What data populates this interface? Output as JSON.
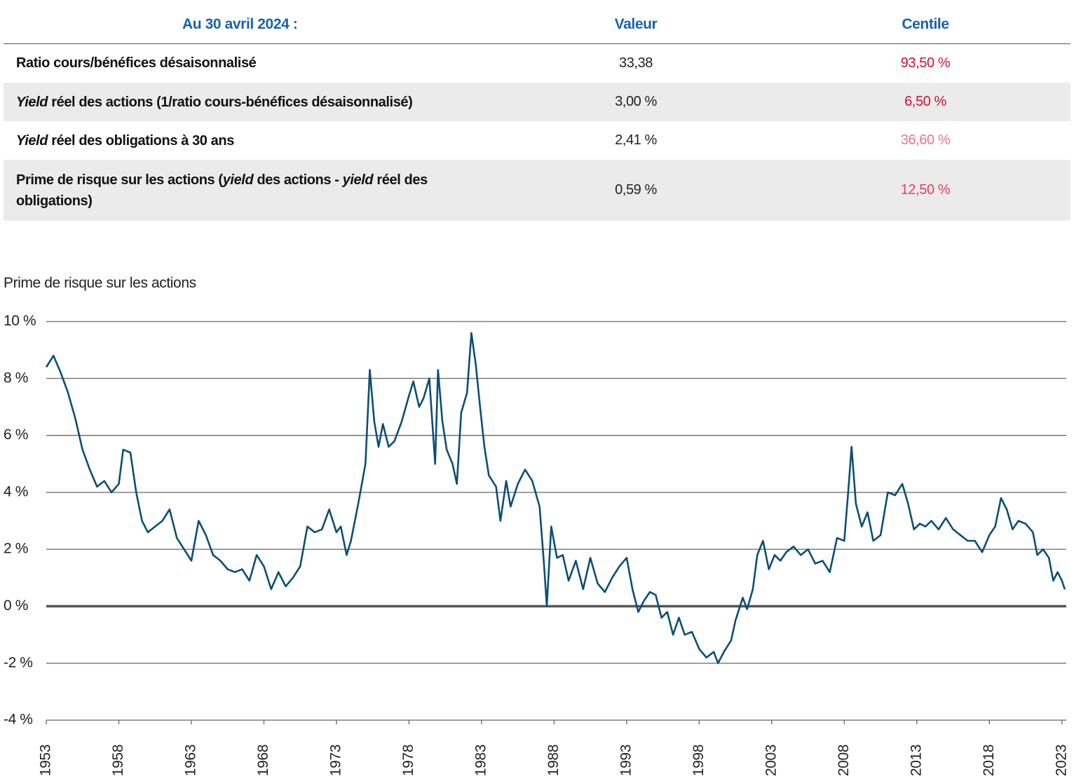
{
  "table": {
    "header": [
      "Au 30 avril 2024 :",
      "Valeur",
      "Centile"
    ],
    "rows": [
      {
        "label": [
          {
            "text": "Ratio cours/bénéfices désaisonnalisé"
          }
        ],
        "value": "33,38",
        "centile": "93,50 %",
        "centile_color": "#d0103a"
      },
      {
        "label": [
          {
            "text": "Yield",
            "italic": true
          },
          {
            "text": " réel des actions (1/ratio cours-bénéfices désaisonnalisé)"
          }
        ],
        "value": "3,00 %",
        "centile": "6,50 %",
        "centile_color": "#d0103a"
      },
      {
        "label": [
          {
            "text": "Yield",
            "italic": true
          },
          {
            "text": " réel des obligations à 30 ans"
          }
        ],
        "value": "2,41 %",
        "centile": "36,60 %",
        "centile_color": "#e8748a"
      },
      {
        "label": [
          {
            "text": "Prime de risque sur les actions ("
          },
          {
            "text": "yield",
            "italic": true
          },
          {
            "text": " des actions - "
          },
          {
            "text": "yield",
            "italic": true
          },
          {
            "text": " réel des obligations)"
          }
        ],
        "value": "0,59 %",
        "centile": "12,50 %",
        "centile_color": "#e2405f"
      }
    ]
  },
  "chart_data": {
    "type": "line",
    "title": "Prime de risque sur les actions",
    "x": [
      1953.0,
      1953.5,
      1954,
      1954.5,
      1955,
      1955.5,
      1956,
      1956.5,
      1957,
      1957.5,
      1958,
      1958.3,
      1958.8,
      1959.2,
      1959.6,
      1960,
      1960.5,
      1961,
      1961.5,
      1962,
      1962.5,
      1963,
      1963.5,
      1964,
      1964.5,
      1965,
      1965.5,
      1966,
      1966.5,
      1967,
      1967.5,
      1968,
      1968.5,
      1969,
      1969.5,
      1970,
      1970.5,
      1971,
      1971.5,
      1972,
      1972.5,
      1973,
      1973.3,
      1973.7,
      1974,
      1974.5,
      1975,
      1975.3,
      1975.6,
      1975.9,
      1976.2,
      1976.6,
      1977,
      1977.5,
      1978,
      1978.3,
      1978.7,
      1979,
      1979.4,
      1979.8,
      1980,
      1980.3,
      1980.6,
      1981,
      1981.3,
      1981.6,
      1982,
      1982.3,
      1982.6,
      1982.9,
      1983.2,
      1983.5,
      1984,
      1984.3,
      1984.7,
      1985,
      1985.5,
      1986,
      1986.5,
      1987,
      1987.3,
      1987.5,
      1987.8,
      1988.2,
      1988.6,
      1989,
      1989.5,
      1990,
      1990.5,
      1991,
      1991.5,
      1992,
      1992.5,
      1993,
      1993.4,
      1993.8,
      1994.2,
      1994.6,
      1995,
      1995.4,
      1995.8,
      1996.2,
      1996.6,
      1997,
      1997.5,
      1998,
      1998.5,
      1999,
      1999.3,
      1999.7,
      2000.2,
      2000.5,
      2001,
      2001.3,
      2001.7,
      2002,
      2002.4,
      2002.8,
      2003.2,
      2003.6,
      2004,
      2004.5,
      2005,
      2005.5,
      2006,
      2006.5,
      2007,
      2007.5,
      2008,
      2008.3,
      2008.5,
      2008.8,
      2009.2,
      2009.6,
      2010,
      2010.5,
      2011,
      2011.5,
      2012,
      2012.4,
      2012.8,
      2013.2,
      2013.6,
      2014,
      2014.5,
      2015,
      2015.5,
      2016,
      2016.5,
      2017,
      2017.5,
      2018,
      2018.4,
      2018.8,
      2019.2,
      2019.6,
      2020,
      2020.5,
      2021,
      2021.3,
      2021.7,
      2022.1,
      2022.4,
      2022.7,
      2023.0,
      2023.2
    ],
    "series": [
      {
        "color": "#0b4f75",
        "values": [
          8.4,
          8.8,
          8.2,
          7.5,
          6.6,
          5.5,
          4.8,
          4.2,
          4.4,
          4.0,
          4.3,
          5.5,
          5.4,
          4.0,
          3.0,
          2.6,
          2.8,
          3.0,
          3.4,
          2.4,
          2.0,
          1.6,
          3.0,
          2.5,
          1.8,
          1.6,
          1.3,
          1.2,
          1.3,
          0.9,
          1.8,
          1.4,
          0.6,
          1.2,
          0.7,
          1.0,
          1.4,
          2.8,
          2.6,
          2.7,
          3.4,
          2.6,
          2.8,
          1.8,
          2.3,
          3.6,
          5.0,
          8.3,
          6.5,
          5.6,
          6.4,
          5.6,
          5.8,
          6.5,
          7.4,
          7.9,
          7.0,
          7.3,
          8.0,
          5.0,
          8.3,
          6.5,
          5.5,
          5.0,
          4.3,
          6.8,
          7.5,
          9.6,
          8.5,
          7.0,
          5.6,
          4.6,
          4.2,
          3.0,
          4.4,
          3.5,
          4.3,
          4.8,
          4.4,
          3.5,
          1.5,
          0.0,
          2.8,
          1.7,
          1.8,
          0.9,
          1.6,
          0.6,
          1.7,
          0.8,
          0.5,
          1.0,
          1.4,
          1.7,
          0.6,
          -0.2,
          0.2,
          0.5,
          0.4,
          -0.4,
          -0.2,
          -1.0,
          -0.4,
          -1.0,
          -0.9,
          -1.5,
          -1.8,
          -1.6,
          -2.0,
          -1.6,
          -1.2,
          -0.5,
          0.3,
          -0.1,
          0.6,
          1.8,
          2.3,
          1.3,
          1.8,
          1.6,
          1.9,
          2.1,
          1.8,
          2.0,
          1.5,
          1.6,
          1.2,
          2.4,
          2.3,
          4.2,
          5.6,
          3.6,
          2.8,
          3.3,
          2.3,
          2.5,
          4.0,
          3.9,
          4.3,
          3.6,
          2.7,
          2.9,
          2.8,
          3.0,
          2.7,
          3.1,
          2.7,
          2.5,
          2.3,
          2.3,
          1.9,
          2.5,
          2.8,
          3.8,
          3.4,
          2.7,
          3.0,
          2.9,
          2.6,
          1.8,
          2.0,
          1.7,
          0.9,
          1.2,
          0.9,
          0.59
        ]
      }
    ],
    "xlim": [
      1953,
      2023.3
    ],
    "xticks": [
      1953,
      1958,
      1963,
      1968,
      1973,
      1978,
      1983,
      1988,
      1993,
      1998,
      2003,
      2008,
      2013,
      2018,
      2023
    ],
    "ylim": [
      -4,
      10
    ],
    "yticks": [
      {
        "value": 10,
        "label": "10 %"
      },
      {
        "value": 8,
        "label": "8 %"
      },
      {
        "value": 6,
        "label": "6 %"
      },
      {
        "value": 4,
        "label": "4 %"
      },
      {
        "value": 2,
        "label": "2 %"
      },
      {
        "value": 0,
        "label": "0 %"
      },
      {
        "value": -2,
        "label": "-2 %"
      },
      {
        "value": -4,
        "label": "-4 %"
      }
    ],
    "grid": true
  }
}
